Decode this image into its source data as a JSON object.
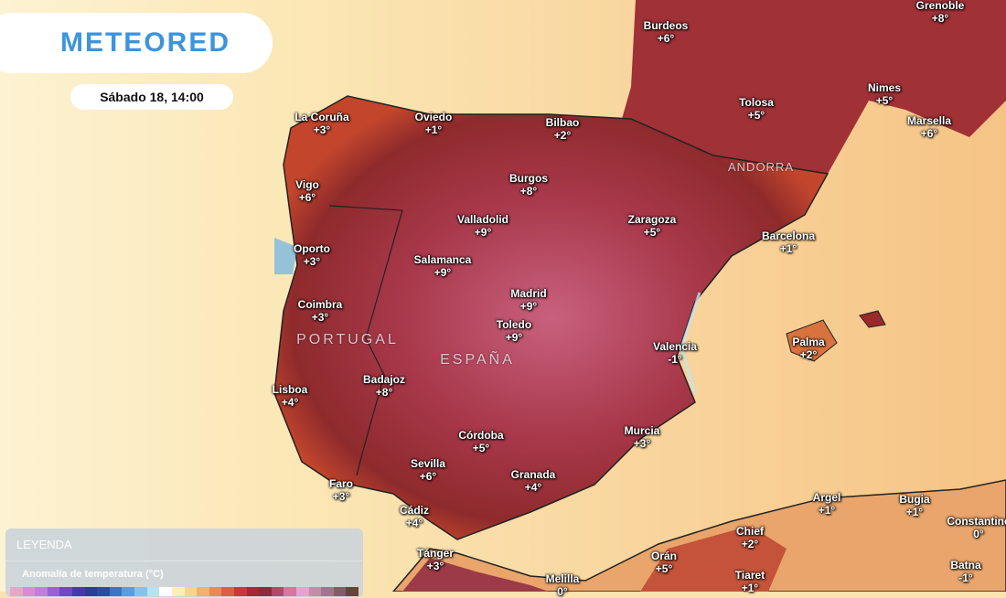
{
  "brand": {
    "logo_text": "METEORED"
  },
  "timestamp": "Sábado 18, 14:00",
  "legend": {
    "title": "LEYENDA",
    "variable": "Anomalía de temperatura (°C)",
    "colors": [
      "#e7a6c6",
      "#d98bd6",
      "#c57ce0",
      "#9b5fd6",
      "#7446c2",
      "#4a37a8",
      "#2b3d96",
      "#254f9e",
      "#3c74c2",
      "#5d9ae0",
      "#86c2ef",
      "#b5e3f5",
      "#ffffff",
      "#fdf0b0",
      "#f9d58a",
      "#f3b06a",
      "#e98a52",
      "#dc603f",
      "#c83a2f",
      "#a82a2a",
      "#8e2b38",
      "#b24a65",
      "#d9769a",
      "#e9a0cc",
      "#c889ad",
      "#a9728c",
      "#8a5a63",
      "#6b4238"
    ]
  },
  "countries": [
    {
      "name": "PORTUGAL"
    },
    {
      "name": "ESPAÑA"
    },
    {
      "name": "ANDORRA"
    }
  ],
  "cities": [
    {
      "name": "Grenoble",
      "value": "+8°"
    },
    {
      "name": "Burdeos",
      "value": "+6°"
    },
    {
      "name": "Tolosa",
      "value": "+5°"
    },
    {
      "name": "Nimes",
      "value": "+5°"
    },
    {
      "name": "Marsella",
      "value": "+6°"
    },
    {
      "name": "La Coruña",
      "value": "+3°"
    },
    {
      "name": "Oviedo",
      "value": "+1°"
    },
    {
      "name": "Bilbao",
      "value": "+2°"
    },
    {
      "name": "Burgos",
      "value": "+8°"
    },
    {
      "name": "Vigo",
      "value": "+6°"
    },
    {
      "name": "Valladolid",
      "value": "+9°"
    },
    {
      "name": "Zaragoza",
      "value": "+5°"
    },
    {
      "name": "Barcelona",
      "value": "+1°"
    },
    {
      "name": "Oporto",
      "value": "+3°"
    },
    {
      "name": "Salamanca",
      "value": "+9°"
    },
    {
      "name": "Madrid",
      "value": "+9°"
    },
    {
      "name": "Coimbra",
      "value": "+3°"
    },
    {
      "name": "Toledo",
      "value": "+9°"
    },
    {
      "name": "Valencia",
      "value": "-1°"
    },
    {
      "name": "Palma",
      "value": "+2°"
    },
    {
      "name": "Badajoz",
      "value": "+8°"
    },
    {
      "name": "Lisboa",
      "value": "+4°"
    },
    {
      "name": "Córdoba",
      "value": "+5°"
    },
    {
      "name": "Murcia",
      "value": "+3°"
    },
    {
      "name": "Sevilla",
      "value": "+6°"
    },
    {
      "name": "Granada",
      "value": "+4°"
    },
    {
      "name": "Faro",
      "value": "+3°"
    },
    {
      "name": "Cádiz",
      "value": "+4°"
    },
    {
      "name": "Argel",
      "value": "+1°"
    },
    {
      "name": "Bugia",
      "value": "+1°"
    },
    {
      "name": "Constantine",
      "value": "0°"
    },
    {
      "name": "Chief",
      "value": "+2°"
    },
    {
      "name": "Batna",
      "value": "-1°"
    },
    {
      "name": "Tánger",
      "value": "+3°"
    },
    {
      "name": "Orán",
      "value": "+5°"
    },
    {
      "name": "Melilla",
      "value": "0°"
    },
    {
      "name": "Tiaret",
      "value": "+1°"
    }
  ]
}
